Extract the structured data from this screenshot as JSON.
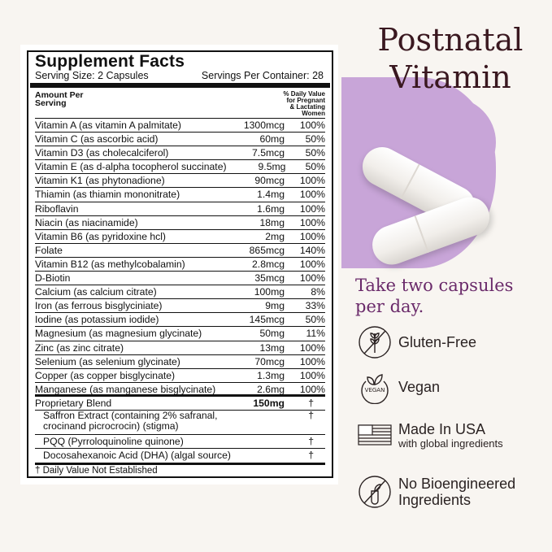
{
  "title": "Postnatal Vitamin",
  "title_line1": "Postnatal",
  "title_line2": "Vitamin",
  "tagline_line1": "Take two capsules",
  "tagline_line2": "per day.",
  "colors": {
    "title": "#3a1820",
    "accent_purple": "#6a2a6a",
    "circle": "#c8a5d8",
    "background": "#f8f5f1"
  },
  "facts": {
    "heading": "Supplement Facts",
    "serving_size": "Serving Size: 2 Capsules",
    "servings_per_container": "Servings Per Container: 28",
    "amount_header_1": "Amount Per",
    "amount_header_2": "Serving",
    "dv_header": [
      "% Daily Value",
      "for Pregnant",
      "& Lactating",
      "Women"
    ],
    "rows": [
      {
        "name": "Vitamin A (as vitamin A palmitate)",
        "amount": "1300mcg",
        "dv": "100%"
      },
      {
        "name": "Vitamin C (as ascorbic acid)",
        "amount": "60mg",
        "dv": "50%"
      },
      {
        "name": "Vitamin D3 (as cholecalciferol)",
        "amount": "7.5mcg",
        "dv": "50%"
      },
      {
        "name": "Vitamin E (as d-alpha tocopherol succinate)",
        "amount": "9.5mg",
        "dv": "50%"
      },
      {
        "name": "Vitamin K1 (as phytonadione)",
        "amount": "90mcg",
        "dv": "100%"
      },
      {
        "name": "Thiamin (as thiamin mononitrate)",
        "amount": "1.4mg",
        "dv": "100%"
      },
      {
        "name": "Riboflavin",
        "amount": "1.6mg",
        "dv": "100%"
      },
      {
        "name": "Niacin (as niacinamide)",
        "amount": "18mg",
        "dv": "100%"
      },
      {
        "name": "Vitamin B6 (as pyridoxine hcl)",
        "amount": "2mg",
        "dv": "100%"
      },
      {
        "name": "Folate",
        "amount": "865mcg",
        "dv": "140%"
      },
      {
        "name": "Vitamin B12 (as methylcobalamin)",
        "amount": "2.8mcg",
        "dv": "100%"
      },
      {
        "name": "D-Biotin",
        "amount": "35mcg",
        "dv": "100%"
      },
      {
        "name": "Calcium (as calcium citrate)",
        "amount": "100mg",
        "dv": "8%"
      },
      {
        "name": "Iron (as ferrous bisglyciniate)",
        "amount": "9mg",
        "dv": "33%"
      },
      {
        "name": "Iodine (as potassium iodide)",
        "amount": "145mcg",
        "dv": "50%"
      },
      {
        "name": "Magnesium (as magnesium glycinate)",
        "amount": "50mg",
        "dv": "11%"
      },
      {
        "name": "Zinc (as zinc citrate)",
        "amount": "13mg",
        "dv": "100%"
      },
      {
        "name": "Selenium (as selenium glycinate)",
        "amount": "70mcg",
        "dv": "100%"
      },
      {
        "name": "Copper (as copper bisglycinate)",
        "amount": "1.3mg",
        "dv": "100%"
      },
      {
        "name": "Manganese (as manganese bisglycinate)",
        "amount": "2.6mg",
        "dv": "100%"
      }
    ],
    "blend": {
      "name": "Proprietary Blend",
      "amount": "150mg",
      "dv": "†"
    },
    "blend_items": [
      {
        "name": "Saffron Extract (containing 2% safranal,",
        "name2": "crocinand picrocrocin) (stigma)",
        "dv": "†"
      },
      {
        "name": "PQQ (Pyrroloquinoline quinone)",
        "dv": "†"
      },
      {
        "name": "Docosahexanoic Acid (DHA) (algal source)",
        "dv": "†"
      }
    ],
    "footnote": "† Daily Value Not Established"
  },
  "features": [
    {
      "icon": "gluten-free-icon",
      "label": "Gluten-Free"
    },
    {
      "icon": "vegan-icon",
      "label": "Vegan",
      "icon_text": "VEGAN"
    },
    {
      "icon": "usa-flag-icon",
      "label": "Made In USA",
      "sub": "with global ingredients"
    },
    {
      "icon": "no-bioengineered-icon",
      "label": "No Bioengineered",
      "label2": "Ingredients"
    }
  ]
}
